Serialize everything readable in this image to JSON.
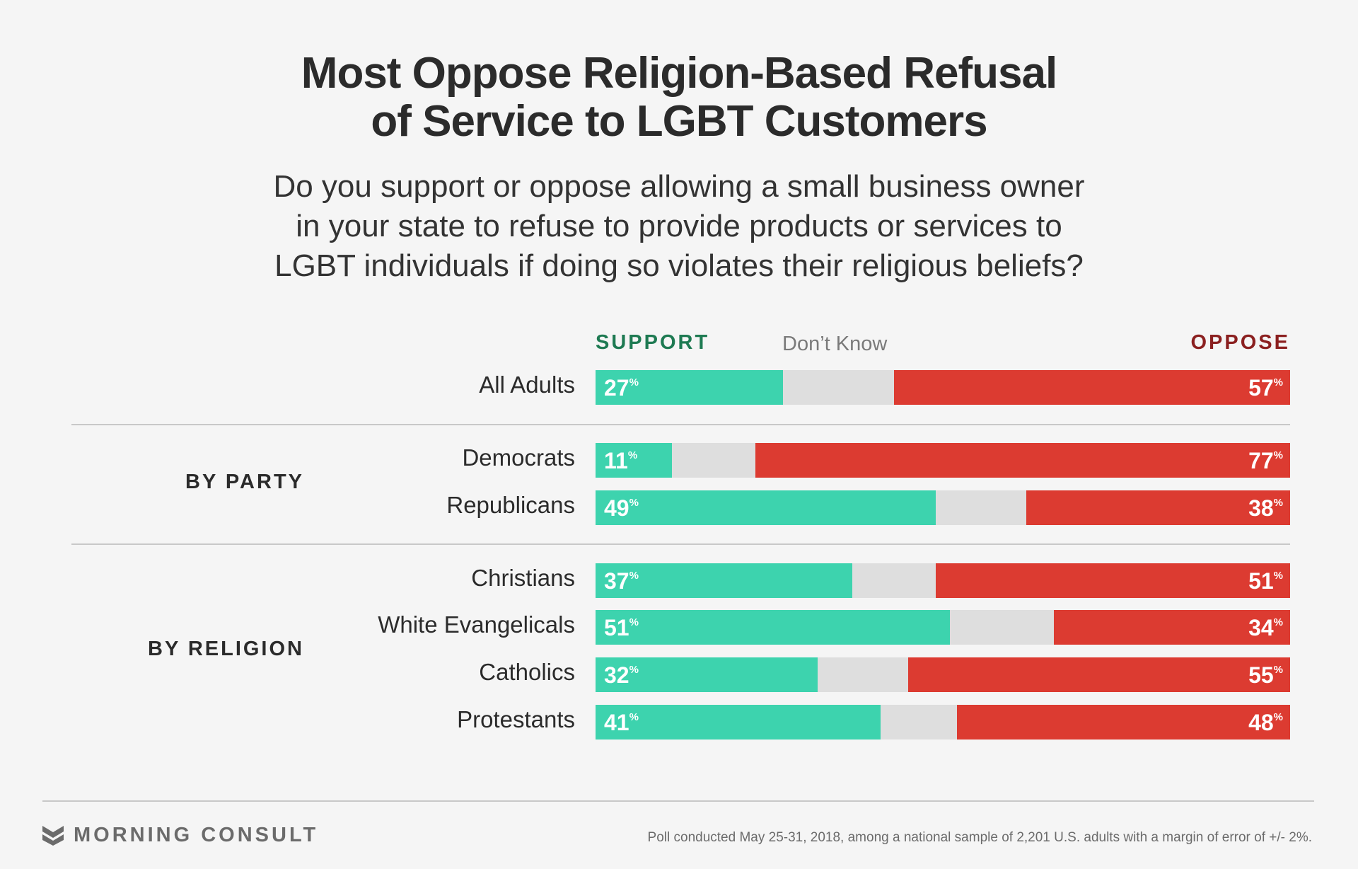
{
  "title": [
    "Most Oppose Religion-Based Refusal",
    "of Service to LGBT Customers"
  ],
  "subtitle": [
    "Do you support or oppose allowing a small business owner",
    "in your state to refuse to provide products or services to",
    "LGBT individuals if doing so violates their religious beliefs?"
  ],
  "legend": {
    "support": "SUPPORT",
    "dont_know": "Don’t Know",
    "oppose": "OPPOSE"
  },
  "groups": {
    "party": "BY PARTY",
    "religion": "BY RELIGION"
  },
  "colors": {
    "support": "#3dd3ae",
    "dont_know": "#dedede",
    "oppose": "#dc3b31"
  },
  "chart_data": {
    "type": "bar",
    "stacked": true,
    "orientation": "horizontal",
    "unit": "%",
    "categories": [
      "All Adults",
      "Democrats",
      "Republicans",
      "Christians",
      "White Evangelicals",
      "Catholics",
      "Protestants"
    ],
    "series": [
      {
        "name": "SUPPORT",
        "values": [
          27,
          11,
          49,
          37,
          51,
          32,
          41
        ]
      },
      {
        "name": "Don’t Know",
        "values": [
          16,
          12,
          13,
          12,
          15,
          13,
          11
        ]
      },
      {
        "name": "OPPOSE",
        "values": [
          57,
          77,
          38,
          51,
          34,
          55,
          48
        ]
      }
    ],
    "groups": [
      {
        "name": "",
        "categories": [
          "All Adults"
        ]
      },
      {
        "name": "BY PARTY",
        "categories": [
          "Democrats",
          "Republicans"
        ]
      },
      {
        "name": "BY RELIGION",
        "categories": [
          "Christians",
          "White Evangelicals",
          "Catholics",
          "Protestants"
        ]
      }
    ],
    "xlim": [
      0,
      100
    ]
  },
  "footer": {
    "brand": "MORNING CONSULT",
    "note": "Poll conducted May 25-31, 2018, among a national sample of 2,201 U.S. adults with a margin of error of +/- 2%."
  }
}
